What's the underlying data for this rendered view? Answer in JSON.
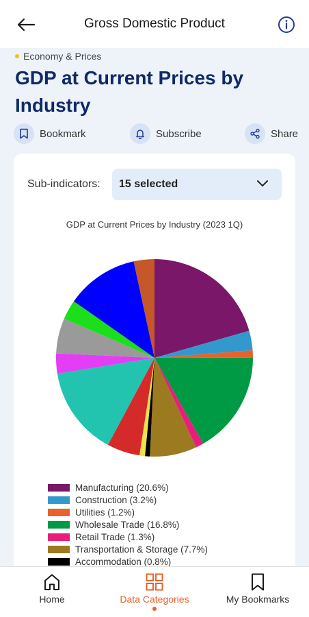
{
  "header": {
    "title": "Gross Domestic Product"
  },
  "category": "Economy & Prices",
  "page_title": "GDP at Current Prices by Industry",
  "actions": [
    {
      "label": "Bookmark",
      "icon": "bookmark-icon"
    },
    {
      "label": "Subscribe",
      "icon": "bell-icon"
    },
    {
      "label": "Share",
      "icon": "share-icon"
    }
  ],
  "filter": {
    "label": "Sub-indicators:",
    "value": "15 selected"
  },
  "chart_data": {
    "type": "pie",
    "title": "GDP at Current Prices by Industry (2023 1Q)",
    "slices": [
      {
        "name": "Manufacturing",
        "value": 20.6,
        "color": "#7b1768",
        "label": "Manufacturing (20.6%)"
      },
      {
        "name": "Construction",
        "value": 3.2,
        "color": "#3399cc",
        "label": "Construction (3.2%)"
      },
      {
        "name": "Utilities",
        "value": 1.2,
        "color": "#e8632b",
        "label": "Utilities (1.2%)"
      },
      {
        "name": "Wholesale Trade",
        "value": 16.8,
        "color": "#009944",
        "label": "Wholesale Trade (16.8%)"
      },
      {
        "name": "Retail Trade",
        "value": 1.3,
        "color": "#e91e7c",
        "label": "Retail Trade (1.3%)"
      },
      {
        "name": "Transportation & Storage",
        "value": 7.7,
        "color": "#9c7a20",
        "label": "Transportation & Storage (7.7%)"
      },
      {
        "name": "Accommodation",
        "value": 0.8,
        "color": "#000000",
        "label": "Accommodation (0.8%)"
      },
      {
        "name": "",
        "value": 0.9,
        "color": "#f1e14a",
        "label": ""
      },
      {
        "name": "",
        "value": 5.4,
        "color": "#d42a2a",
        "label": ""
      },
      {
        "name": "",
        "value": 14.6,
        "color": "#22c4b0",
        "label": ""
      },
      {
        "name": "",
        "value": 3.3,
        "color": "#e33df5",
        "label": ""
      },
      {
        "name": "",
        "value": 5.8,
        "color": "#9a9a9a",
        "label": ""
      },
      {
        "name": "",
        "value": 3.2,
        "color": "#1adf1a",
        "label": ""
      },
      {
        "name": "",
        "value": 11.9,
        "color": "#0000ff",
        "label": ""
      },
      {
        "name": "",
        "value": 3.4,
        "color": "#c4582a",
        "label": ""
      }
    ],
    "legend_visible": [
      0,
      1,
      2,
      3,
      4,
      5,
      6
    ],
    "legend_position": "bottom"
  },
  "nav": [
    {
      "label": "Home",
      "icon": "home-icon",
      "active": false
    },
    {
      "label": "Data Categories",
      "icon": "grid-icon",
      "active": true
    },
    {
      "label": "My Bookmarks",
      "icon": "bookmark-icon",
      "active": false
    }
  ],
  "colors": {
    "title": "#0f2a66",
    "accent": "#e8632b",
    "icon_bg": "#d6e2f5"
  }
}
